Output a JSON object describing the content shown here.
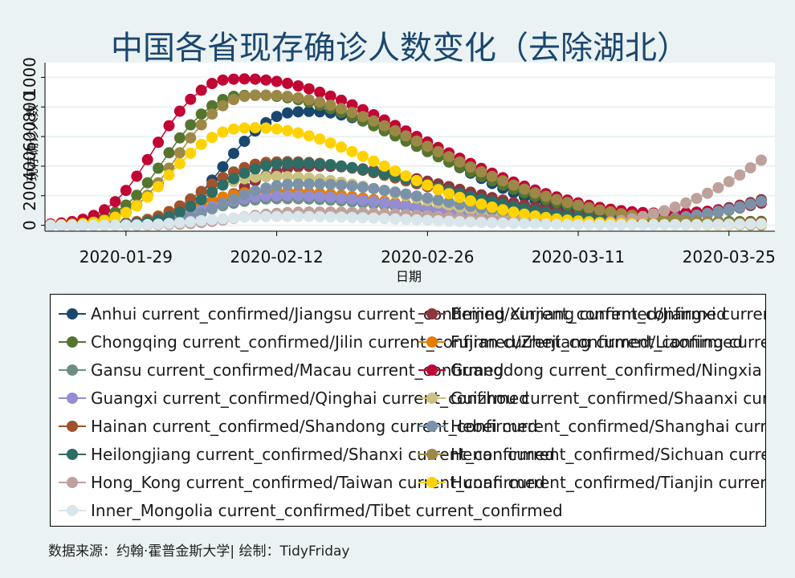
{
  "chart_data": {
    "type": "scatter",
    "title": "中国各省现存确诊人数变化（去除湖北）",
    "xlabel": "日期",
    "ylabel": "现存确诊人数",
    "x_ticks": [
      "2020-01-29",
      "2020-02-12",
      "2020-02-26",
      "2020-03-11",
      "2020-03-25"
    ],
    "y_ticks": [
      0,
      200,
      400,
      600,
      800,
      1000
    ],
    "y_tick_labels": [
      "0",
      "200",
      "400",
      "600",
      "800",
      "1000"
    ],
    "ylim": [
      -40,
      1100
    ],
    "grid": true,
    "legend_placement": "bottom",
    "x_start": "2020-01-22",
    "x_end": "2020-03-28",
    "series": [
      {
        "name": "Anhui current_confirmed/Jiangsu current_confirmed/Xinjiang current_confirmed",
        "color": "#1a476f",
        "peak": 770,
        "peak_day": 24,
        "width": 12,
        "tail": 0
      },
      {
        "name": "Beijing current_confirmed/Jiangxi current_confirmed/Yunnan current_confirmed",
        "color": "#90353b",
        "peak": 400,
        "peak_day": 25,
        "width": 13,
        "tail": 170
      },
      {
        "name": "Chongqing current_confirmed/Jilin current_confirmed/Zhejiang current_confirmed",
        "color": "#55752f",
        "peak": 880,
        "peak_day": 19,
        "width": 15,
        "tail": 20
      },
      {
        "name": "Fujian current_confirmed/Liaoning current_confirmed",
        "color": "#e37e00",
        "peak": 230,
        "peak_day": 21,
        "width": 12,
        "tail": 10
      },
      {
        "name": "Gansu current_confirmed/Macau current_confirmed",
        "color": "#6e8e84",
        "peak": 180,
        "peak_day": 22,
        "width": 12,
        "tail": 150
      },
      {
        "name": "Guangdong current_confirmed/Ningxia current_confirmed",
        "color": "#c10534",
        "peak": 990,
        "peak_day": 18,
        "width": 16,
        "tail": 140
      },
      {
        "name": "Guangxi current_confirmed/Qinghai current_confirmed",
        "color": "#938dd2",
        "peak": 200,
        "peak_day": 22,
        "width": 12,
        "tail": 10
      },
      {
        "name": "Guizhou current_confirmed/Shaanxi current_confirmed",
        "color": "#cac27e",
        "peak": 330,
        "peak_day": 21,
        "width": 12,
        "tail": 5
      },
      {
        "name": "Hainan current_confirmed/Shandong current_confirmed",
        "color": "#a0522d",
        "peak": 430,
        "peak_day": 22,
        "width": 13,
        "tail": 20
      },
      {
        "name": "Hebei current_confirmed/Shanghai current_confirmed",
        "color": "#7b92a8",
        "peak": 280,
        "peak_day": 24,
        "width": 12,
        "tail": 160
      },
      {
        "name": "Heilongjiang current_confirmed/Shanxi current_confirmed",
        "color": "#2d6d66",
        "peak": 420,
        "peak_day": 23,
        "width": 13,
        "tail": 10
      },
      {
        "name": "Henan current_confirmed/Sichuan current_confirmed",
        "color": "#9c8847",
        "peak": 880,
        "peak_day": 20,
        "width": 15,
        "tail": 5
      },
      {
        "name": "Hong_Kong current_confirmed/Taiwan current_confirmed",
        "color": "#bfa19c",
        "peak": 90,
        "peak_day": 25,
        "width": 12,
        "tail": 440
      },
      {
        "name": "Hunan current_confirmed/Tianjin current_confirmed",
        "color": "#ffd200",
        "peak": 660,
        "peak_day": 19,
        "width": 12,
        "tail": 5
      },
      {
        "name": "Inner_Mongolia current_confirmed/Tibet current_confirmed",
        "color": "#d9e6eb",
        "peak": 60,
        "peak_day": 22,
        "width": 12,
        "tail": 10
      }
    ]
  },
  "caption": "数据来源：约翰·霍普金斯大学| 绘制：TidyFriday"
}
